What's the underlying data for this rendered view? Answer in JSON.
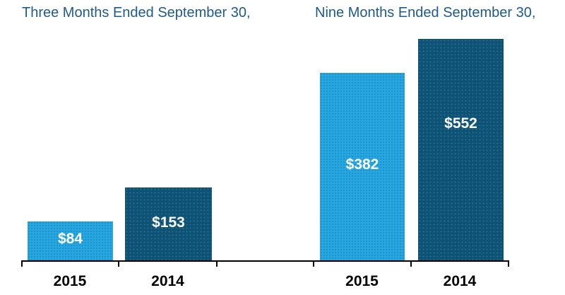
{
  "colors": {
    "light_blue": "#27A7DF",
    "dark_blue": "#0E5278",
    "title_text": "#1E5B8D",
    "value_text": "#FFFFFF",
    "axis": "#000000"
  },
  "chart_data": {
    "type": "bar",
    "groups": [
      {
        "title": "Three Months Ended September 30,",
        "categories": [
          "2015",
          "2014"
        ],
        "values": [
          84,
          153
        ],
        "labels": [
          "$84",
          "$153"
        ],
        "bar_colors": [
          "#27A7DF",
          "#0E5278"
        ]
      },
      {
        "title": "Nine Months Ended September 30,",
        "categories": [
          "2015",
          "2014"
        ],
        "values": [
          382,
          552
        ],
        "labels": [
          "$382",
          "$552"
        ],
        "bar_colors": [
          "#27A7DF",
          "#0E5278"
        ]
      }
    ],
    "xlabel": "",
    "ylabel": "",
    "grid": false,
    "legend": false,
    "value_labels_inside_bars": true,
    "axis_baseline_ticks": 6
  }
}
